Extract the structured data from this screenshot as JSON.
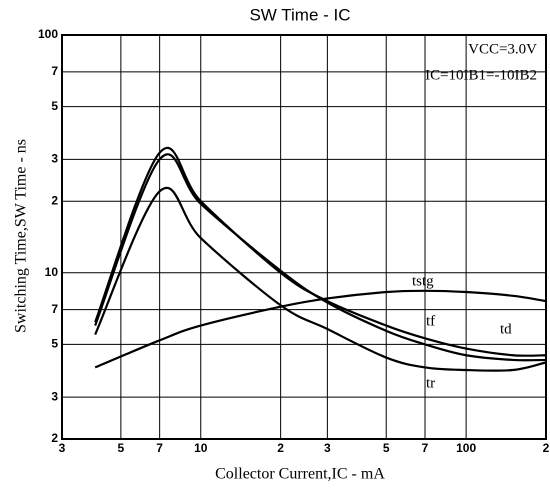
{
  "chart_data": {
    "type": "line",
    "title": "SW Time - IC",
    "annotations": [
      "VCC=3.0V",
      "IC=10IB1=-10IB2"
    ],
    "x_label": "Collector Current,IC - mA",
    "y_label": "Switching Time,SW Time - ns",
    "log_x": true,
    "log_y": true,
    "grid": true,
    "xlim": [
      3,
      200
    ],
    "ylim": [
      2,
      100
    ],
    "xticks": [
      3,
      5,
      7,
      10,
      {
        "value": 20,
        "label": "2"
      },
      {
        "value": 30,
        "label": "3"
      },
      {
        "value": 50,
        "label": "5"
      },
      {
        "value": 70,
        "label": "7"
      },
      100,
      {
        "value": 200,
        "label": "2"
      }
    ],
    "yticks": [
      2,
      3,
      5,
      7,
      10,
      {
        "value": 20,
        "label": "2"
      },
      {
        "value": 30,
        "label": "3"
      },
      {
        "value": 50,
        "label": "5"
      },
      {
        "value": 70,
        "label": "7"
      },
      100
    ],
    "x": [
      4,
      7,
      10,
      20,
      30,
      50,
      70,
      100,
      150,
      200
    ],
    "series": [
      {
        "name": "tstg",
        "color": "#000000",
        "values": [
          4,
          5.2,
          6,
          7.2,
          7.8,
          8.3,
          8.4,
          8.3,
          8,
          7.6
        ]
      },
      {
        "name": "tf",
        "color": "#000000",
        "values": [
          6.2,
          32,
          20,
          10,
          7.6,
          6,
          5.3,
          4.8,
          4.5,
          4.5
        ]
      },
      {
        "name": "td",
        "color": "#000000",
        "values": [
          6,
          30,
          19.5,
          10.2,
          7.5,
          5.7,
          5,
          4.5,
          4.3,
          4.3
        ]
      },
      {
        "name": "tr",
        "color": "#000000",
        "values": [
          5.5,
          22,
          14,
          7.3,
          5.8,
          4.4,
          4,
          3.9,
          3.9,
          4.2
        ]
      }
    ]
  }
}
